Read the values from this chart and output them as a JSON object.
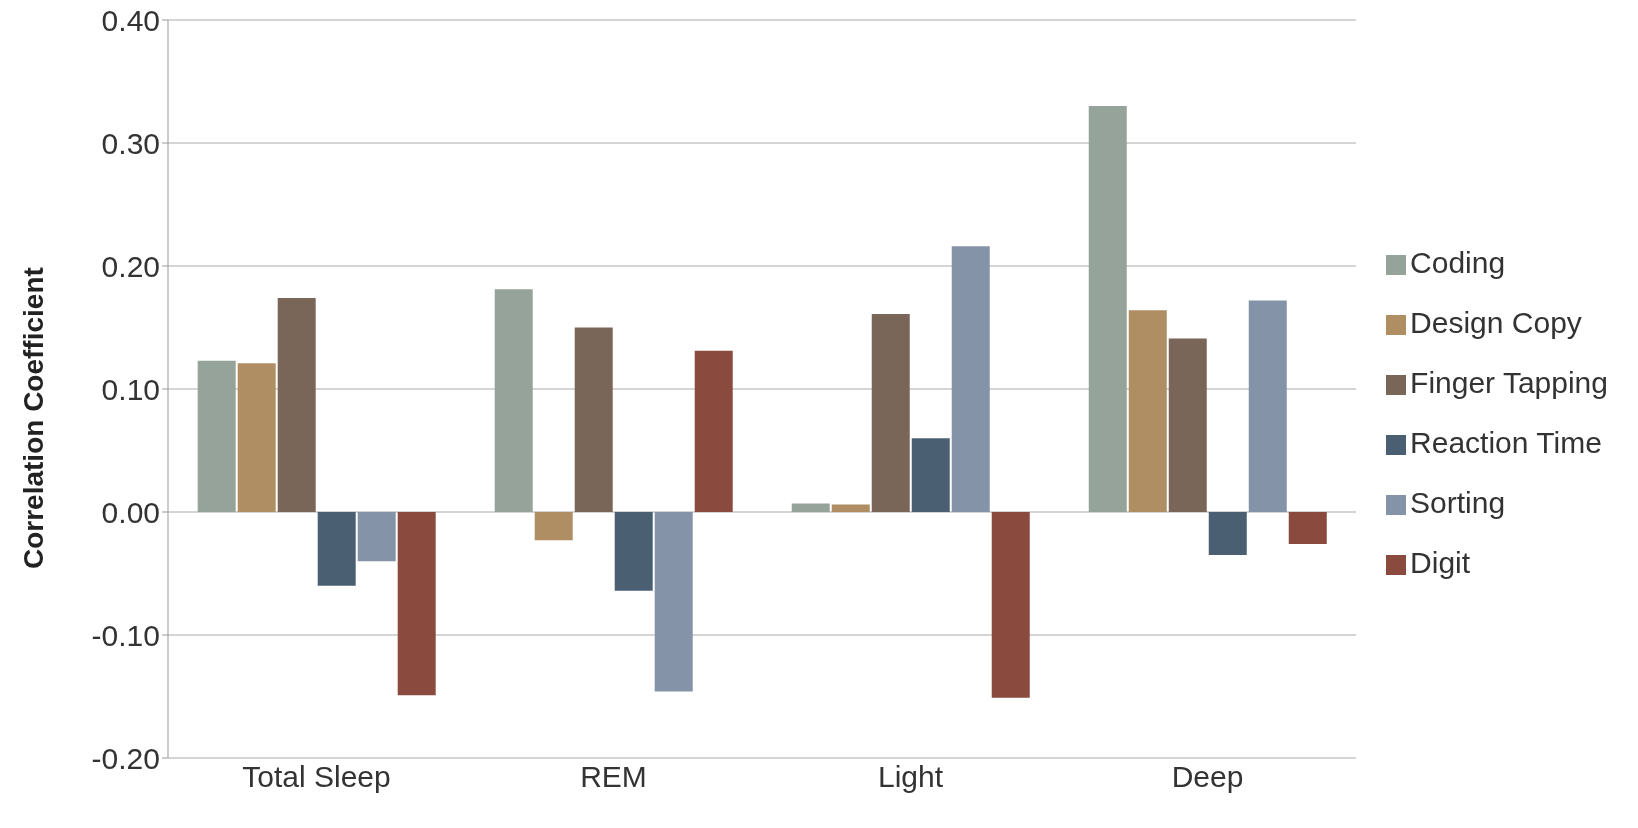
{
  "chart_data": {
    "type": "bar",
    "ylabel": "Correlation Coefficient",
    "categories": [
      "Total Sleep",
      "REM",
      "Light",
      "Deep"
    ],
    "series": [
      {
        "name": "Coding",
        "color": "#95a39a",
        "values": [
          0.123,
          0.181,
          0.007,
          0.33
        ]
      },
      {
        "name": "Design Copy",
        "color": "#b08e63",
        "values": [
          0.121,
          -0.023,
          0.006,
          0.164
        ]
      },
      {
        "name": "Finger Tapping",
        "color": "#7a6658",
        "values": [
          0.174,
          0.15,
          0.161,
          0.141
        ]
      },
      {
        "name": "Reaction Time",
        "color": "#4a5f72",
        "values": [
          -0.06,
          -0.064,
          0.06,
          -0.035
        ]
      },
      {
        "name": "Sorting",
        "color": "#8493a8",
        "values": [
          -0.04,
          -0.146,
          0.216,
          0.172
        ]
      },
      {
        "name": "Digit",
        "color": "#8a4a3e",
        "values": [
          -0.149,
          0.131,
          -0.151,
          -0.026
        ]
      }
    ],
    "ylim": [
      -0.2,
      0.4
    ],
    "yticks": [
      {
        "value": -0.2,
        "label": "-0.20"
      },
      {
        "value": -0.1,
        "label": "-0.10"
      },
      {
        "value": 0,
        "label": "0.00"
      },
      {
        "value": 0.1,
        "label": "0.10"
      },
      {
        "value": 0.2,
        "label": "0.20"
      },
      {
        "value": 0.3,
        "label": "0.30"
      },
      {
        "value": 0.4,
        "label": "0.40"
      }
    ],
    "grid": "y",
    "legend": "right"
  }
}
